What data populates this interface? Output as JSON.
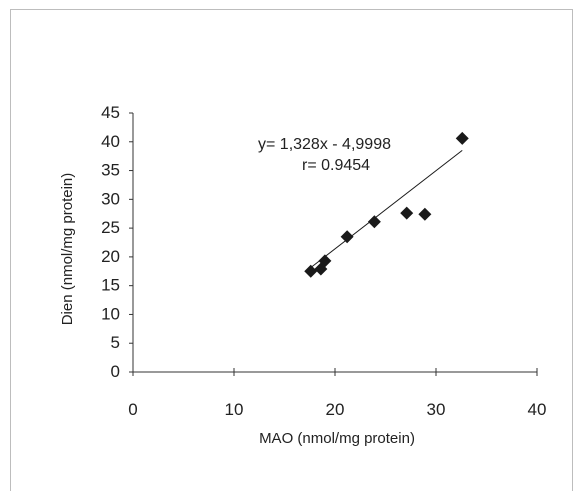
{
  "chart_data": {
    "type": "scatter",
    "xlabel": "MAO (nmol/mg protein)",
    "ylabel": "Dien (nmol/mg protein)",
    "xlim": [
      0,
      40
    ],
    "ylim": [
      0,
      45
    ],
    "x_ticks": [
      "0",
      "10",
      "20",
      "30",
      "40"
    ],
    "y_ticks": [
      "0",
      "5",
      "10",
      "15",
      "20",
      "25",
      "30",
      "35",
      "40",
      "45"
    ],
    "points": [
      {
        "x": 17.6,
        "y": 17.5
      },
      {
        "x": 18.6,
        "y": 17.9
      },
      {
        "x": 19.0,
        "y": 19.3
      },
      {
        "x": 21.2,
        "y": 23.5
      },
      {
        "x": 23.9,
        "y": 26.1
      },
      {
        "x": 27.1,
        "y": 27.6
      },
      {
        "x": 28.9,
        "y": 27.4
      },
      {
        "x": 32.6,
        "y": 40.6
      }
    ],
    "trendline": {
      "x": [
        17.5,
        32.6
      ],
      "y": [
        18.0,
        38.5
      ]
    },
    "annotations": [
      "y= 1,328x - 4,9998",
      "r= 0.9454"
    ],
    "marker_color": "#1a1a1a",
    "line_color": "#1a1a1a",
    "grid": false,
    "legend": "none"
  }
}
